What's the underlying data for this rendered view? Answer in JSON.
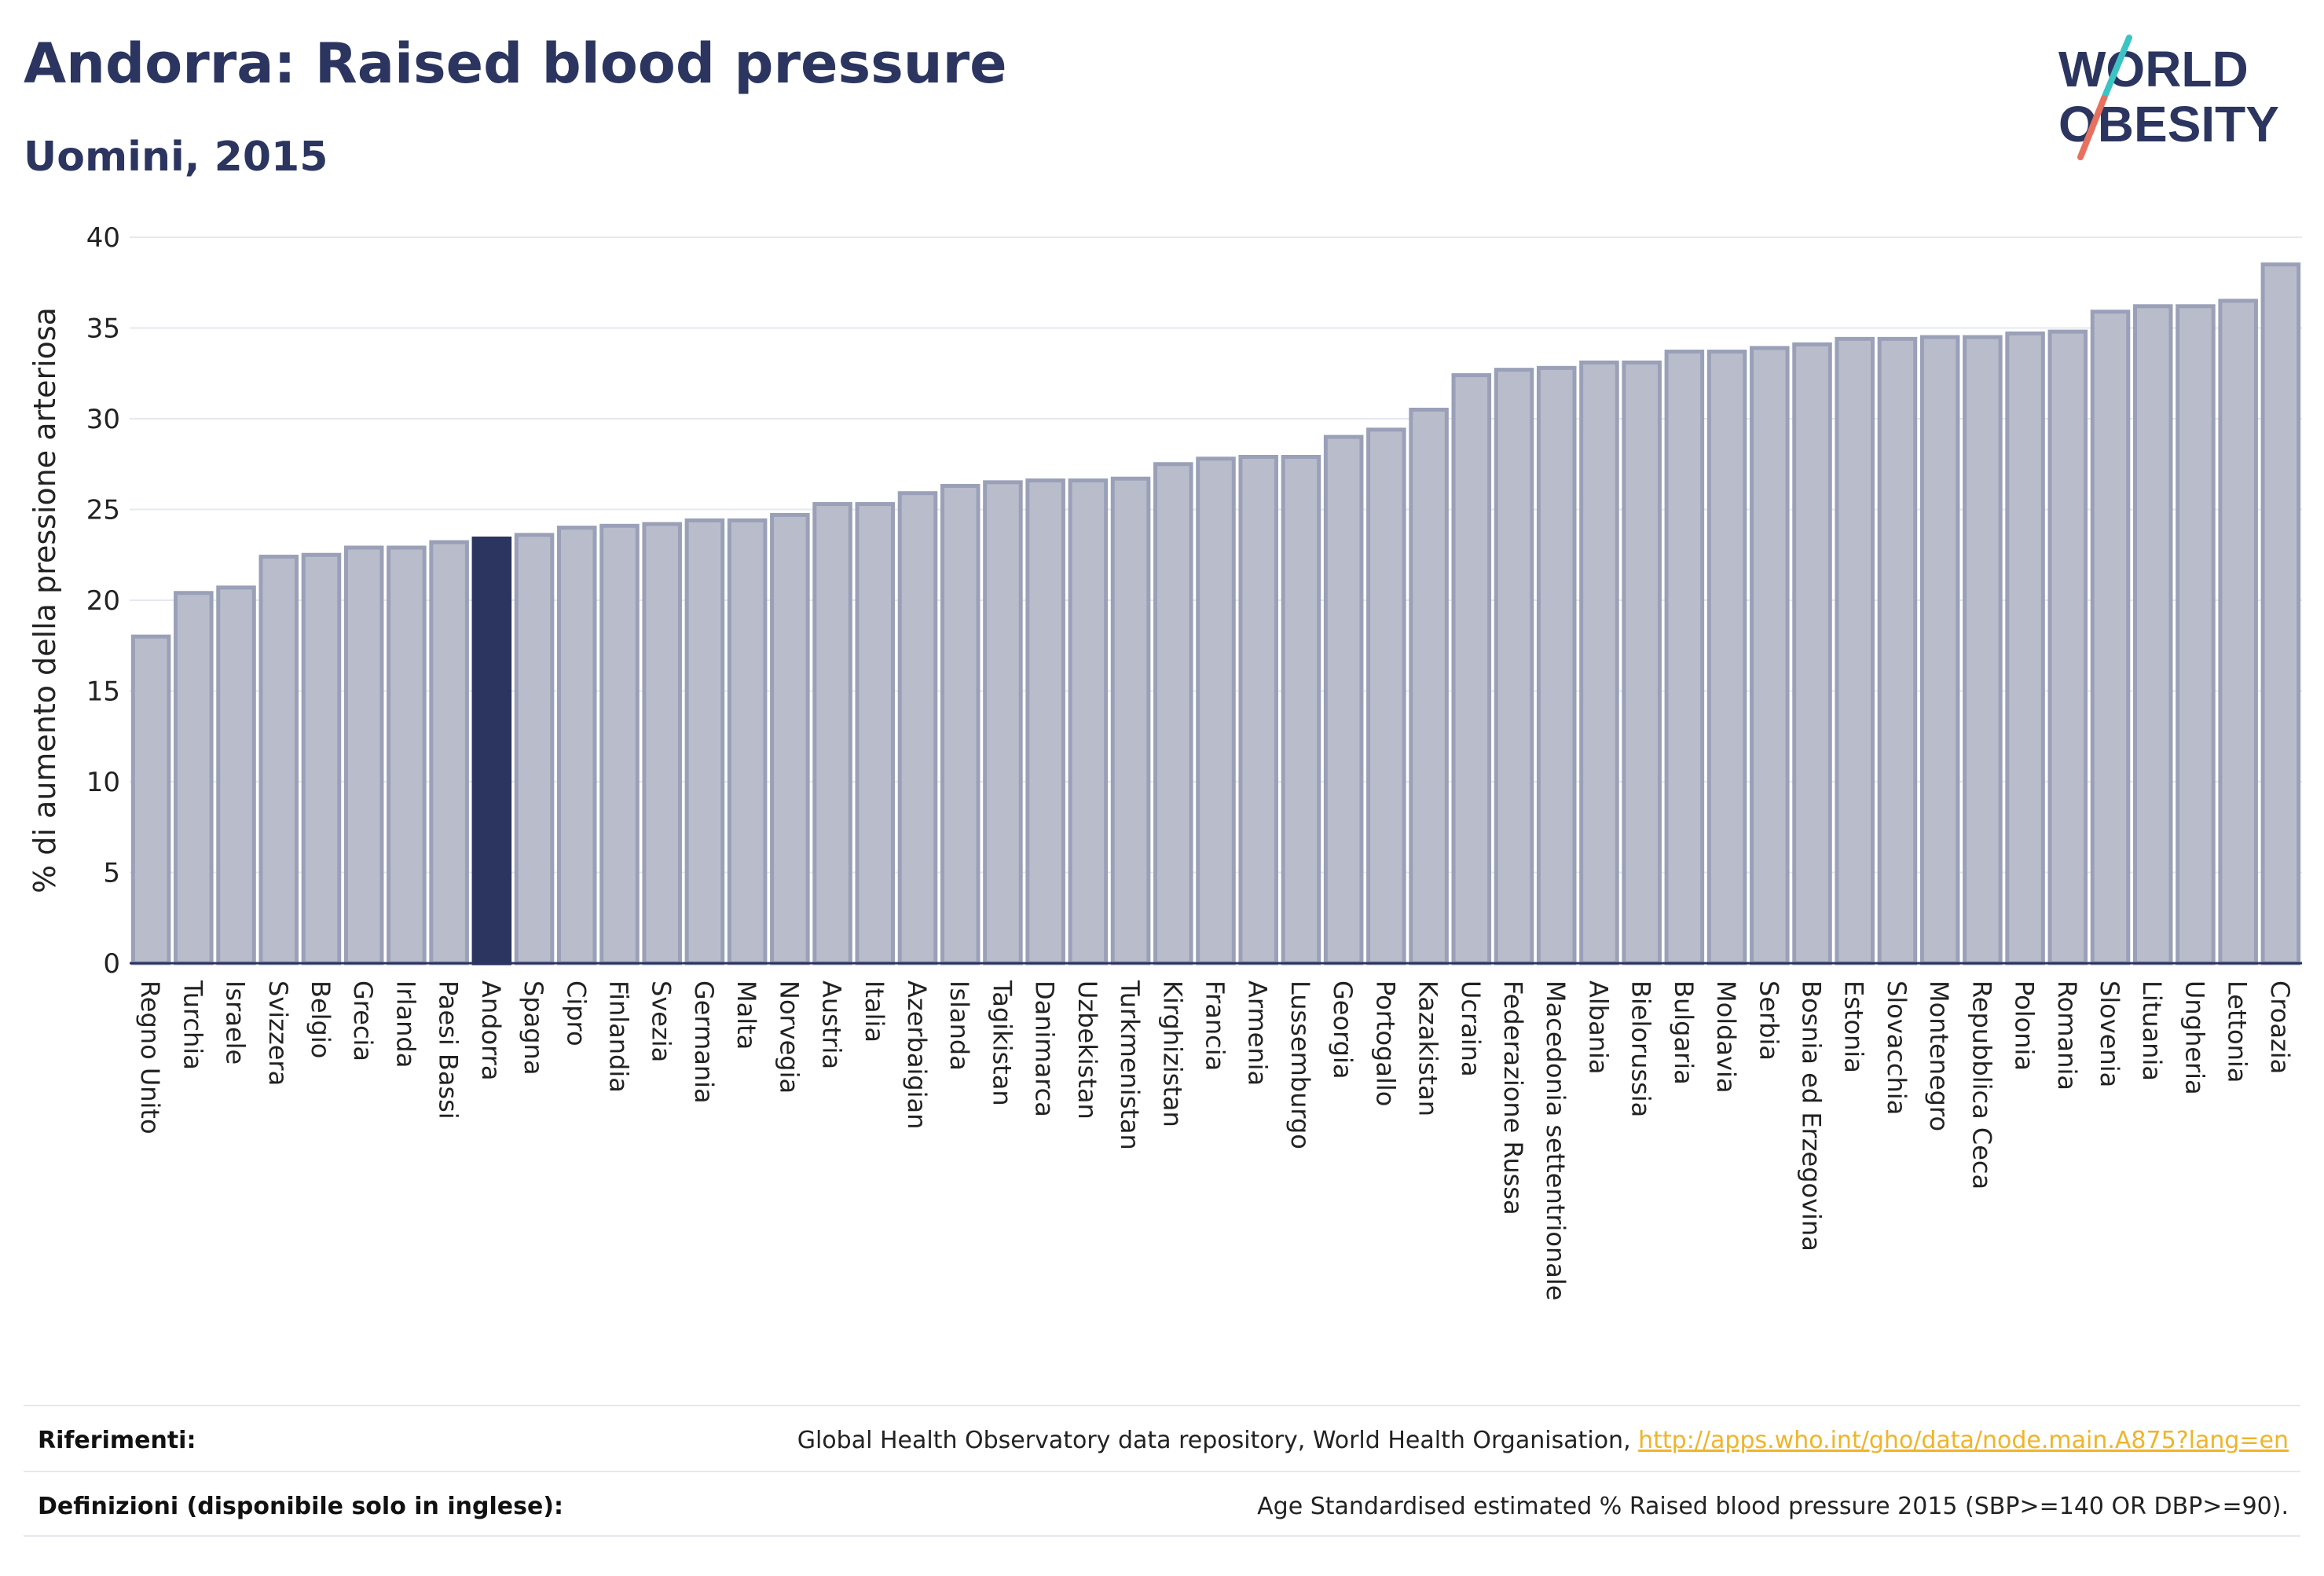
{
  "header": {
    "title": "Andorra: Raised blood pressure",
    "subtitle": "Uomini, 2015"
  },
  "logo": {
    "line1": "WORLD",
    "line2": "OBESITY"
  },
  "colors": {
    "highlight": "#2b3560",
    "bar_fill": "#b9bdcb",
    "bar_stroke": "#9aa0b8",
    "grid": "#e6e8ef",
    "text": "#2b3560",
    "link": "#f0b429",
    "logo_slash_teal": "#3cc4c4",
    "logo_slash_coral": "#e8705f"
  },
  "chart_data": {
    "type": "bar",
    "ylabel": "% di aumento della pressione arteriosa",
    "xlabel": "",
    "ylim": [
      0,
      40
    ],
    "yticks": [
      0,
      5,
      10,
      15,
      20,
      25,
      30,
      35,
      40
    ],
    "grid": true,
    "highlight": "Andorra",
    "categories": [
      "Regno Unito",
      "Turchia",
      "Israele",
      "Svizzera",
      "Belgio",
      "Grecia",
      "Irlanda",
      "Paesi Bassi",
      "Andorra",
      "Spagna",
      "Cipro",
      "Finlandia",
      "Svezia",
      "Germania",
      "Malta",
      "Norvegia",
      "Austria",
      "Italia",
      "Azerbaigian",
      "Islanda",
      "Tagikistan",
      "Danimarca",
      "Uzbekistan",
      "Turkmenistan",
      "Kirghizistan",
      "Francia",
      "Armenia",
      "Lussemburgo",
      "Georgia",
      "Portogallo",
      "Kazakistan",
      "Ucraina",
      "Federazione Russa",
      "Macedonia settentrionale",
      "Albania",
      "Bielorussia",
      "Bulgaria",
      "Moldavia",
      "Serbia",
      "Bosnia ed Erzegovina",
      "Estonia",
      "Slovacchia",
      "Montenegro",
      "Repubblica Ceca",
      "Polonia",
      "Romania",
      "Slovenia",
      "Lituania",
      "Ungheria",
      "Lettonia",
      "Croazia"
    ],
    "values": [
      18.0,
      20.4,
      20.7,
      22.4,
      22.5,
      22.9,
      22.9,
      23.2,
      23.4,
      23.6,
      24.0,
      24.1,
      24.2,
      24.4,
      24.4,
      24.7,
      25.3,
      25.3,
      25.9,
      26.3,
      26.5,
      26.6,
      26.6,
      26.7,
      27.5,
      27.8,
      27.9,
      27.9,
      29.0,
      29.4,
      30.5,
      32.4,
      32.7,
      32.8,
      33.1,
      33.1,
      33.7,
      33.7,
      33.9,
      34.1,
      34.4,
      34.4,
      34.5,
      34.5,
      34.7,
      34.8,
      35.9,
      36.2,
      36.2,
      36.5,
      38.5
    ]
  },
  "footer": {
    "references_label": "Riferimenti:",
    "references_text": "Global Health Observatory data repository, World Health Organisation, ",
    "references_link": "http://apps.who.int/gho/data/node.main.A875?lang=en",
    "definitions_label": "Definizioni (disponibile solo in inglese):",
    "definitions_text": "Age Standardised estimated % Raised blood pressure 2015 (SBP>=140 OR DBP>=90)."
  }
}
